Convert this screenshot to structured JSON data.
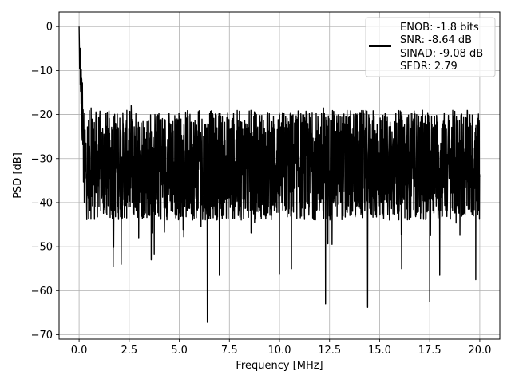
{
  "chart_data": {
    "type": "line",
    "title": "",
    "xlabel": "Frequency [MHz]",
    "ylabel": "PSD [dB]",
    "xlim": [
      -1.0,
      21.0
    ],
    "ylim": [
      -71.0,
      3.3
    ],
    "xticks": [
      0.0,
      2.5,
      5.0,
      7.5,
      10.0,
      12.5,
      15.0,
      17.5,
      20.0
    ],
    "xtick_labels": [
      "0.0",
      "2.5",
      "5.0",
      "7.5",
      "10.0",
      "12.5",
      "15.0",
      "17.5",
      "20.0"
    ],
    "yticks": [
      0,
      -10,
      -20,
      -30,
      -40,
      -50,
      -60,
      -70
    ],
    "ytick_labels": [
      "0",
      "−10",
      "−20",
      "−30",
      "−40",
      "−50",
      "−60",
      "−70"
    ],
    "grid": true,
    "legend": {
      "placement": "top-right",
      "lines": [
        "ENOB: -1.8 bits",
        "SNR: -8.64 dB",
        "SINAD: -9.08 dB",
        "SFDR: 2.79"
      ]
    },
    "series": [
      {
        "color": "#000000",
        "x_range": [
          0.0,
          20.0
        ],
        "peak": {
          "x": 0.0,
          "y": 0.0
        },
        "approx_floor_band_db": [
          -44,
          -19
        ],
        "notable_dips": [
          {
            "x": 6.4,
            "y": -67.2
          },
          {
            "x": 12.3,
            "y": -63.0
          },
          {
            "x": 14.4,
            "y": -63.8
          },
          {
            "x": 17.5,
            "y": -62.5
          },
          {
            "x": 7.0,
            "y": -56.5
          },
          {
            "x": 10.0,
            "y": -56.3
          },
          {
            "x": 19.8,
            "y": -57.5
          },
          {
            "x": 18.0,
            "y": -56.5
          },
          {
            "x": 1.7,
            "y": -54.5
          },
          {
            "x": 2.1,
            "y": -54.0
          },
          {
            "x": 3.6,
            "y": -53.0
          },
          {
            "x": 16.1,
            "y": -55.0
          },
          {
            "x": 10.6,
            "y": -55.0
          }
        ],
        "notable_spikes": [
          {
            "x": 12.2,
            "y": -18.5
          },
          {
            "x": 0.6,
            "y": -18.5
          },
          {
            "x": 2.6,
            "y": -18.0
          }
        ]
      }
    ]
  }
}
